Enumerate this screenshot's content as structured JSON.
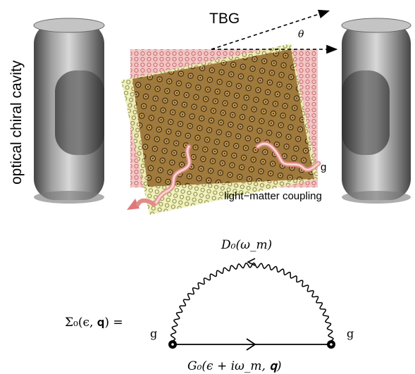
{
  "figure": {
    "cavity_label": "optical chiral cavity",
    "material_label": "TBG",
    "angle_label": "θ",
    "photon_label": "g",
    "coupling_label": "light−matter coupling"
  },
  "diagram": {
    "self_energy": "Σ₀(ϵ, 𝐪) =",
    "photon_propagator": "D₀(ω_m)",
    "electron_propagator": "G₀(ϵ + iω_m, 𝐪)",
    "vertex_left": "g",
    "vertex_right": "g"
  },
  "colors": {
    "lattice_top": "#c9a45a",
    "lattice_bottom": "#e8a2a2",
    "photon_wave": "#f2a0a0",
    "cavity_gray": "#8a8a8a"
  }
}
